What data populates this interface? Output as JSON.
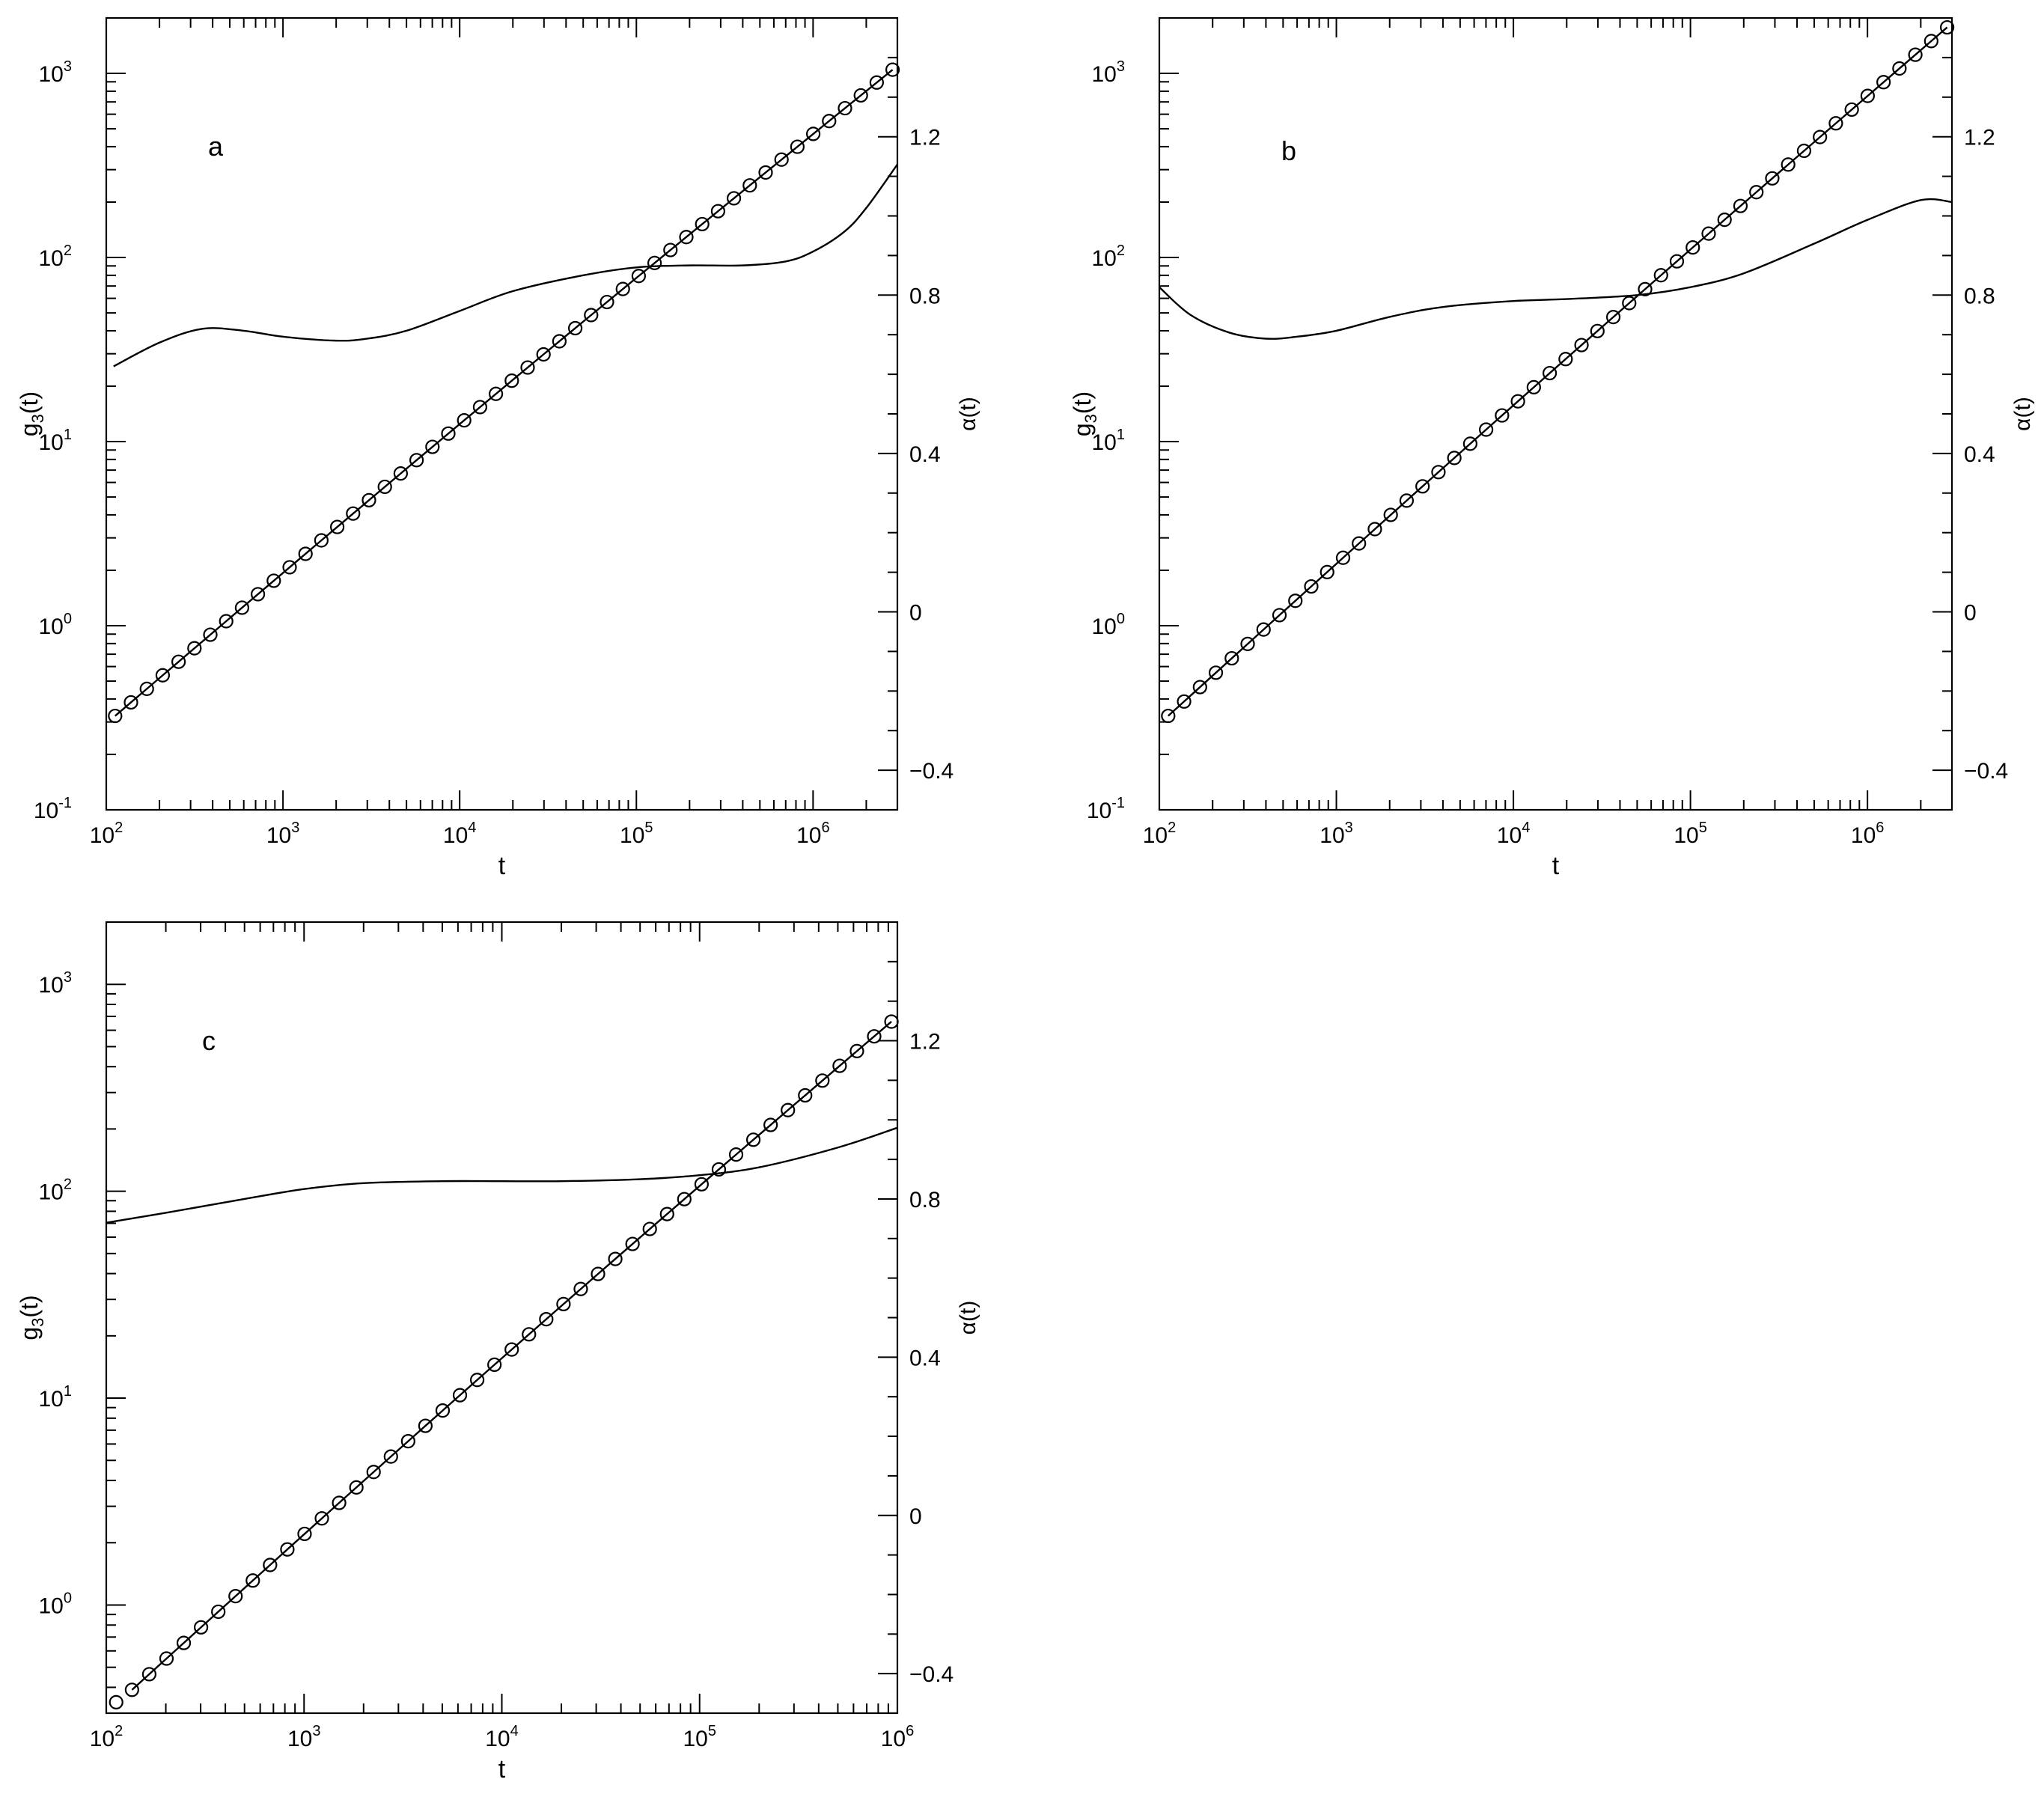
{
  "chart_data": [
    {
      "type": "line",
      "panel_label": "a",
      "xlabel": "t",
      "ylabel": "g3(t)",
      "ylabel_base": "g",
      "ylabel_sub": "3",
      "ylabel_suffix": "(t)",
      "y2label": "α(t)",
      "x_scale": "log",
      "y_scale": "log",
      "xlim": [
        100,
        3000000
      ],
      "ylim": [
        0.1,
        2000
      ],
      "y2lim": [
        -0.5,
        1.5
      ],
      "x_tick_exponents": [
        2,
        3,
        4,
        5,
        6
      ],
      "y_tick_exponents": [
        -1,
        0,
        1,
        2,
        3
      ],
      "y2_ticks": [
        "1.2",
        "0.8",
        "0.4",
        "0",
        "−0.4"
      ],
      "y2_tick_values": [
        1.2,
        0.8,
        0.4,
        0,
        -0.4
      ],
      "grid": false,
      "series": [
        {
          "role": "g3(t) markers with fit line",
          "y_axis": "left",
          "x_log_range": [
            2.05,
            6.45
          ],
          "y_log_range": [
            -0.49,
            3.02
          ],
          "n_markers": 50
        },
        {
          "role": "alpha(t)",
          "y_axis": "right",
          "x": [
            110,
            200,
            350,
            600,
            1000,
            2000,
            3000,
            5000,
            10000,
            20000,
            50000,
            100000,
            200000,
            400000,
            700000,
            1000000,
            1500000,
            2000000,
            3000000
          ],
          "y": [
            0.62,
            0.68,
            0.715,
            0.71,
            0.695,
            0.685,
            0.69,
            0.71,
            0.76,
            0.81,
            0.85,
            0.87,
            0.875,
            0.875,
            0.885,
            0.91,
            0.96,
            1.02,
            1.13
          ]
        }
      ]
    },
    {
      "type": "line",
      "panel_label": "b",
      "xlabel": "t",
      "ylabel": "g3(t)",
      "ylabel_base": "g",
      "ylabel_sub": "3",
      "ylabel_suffix": "(t)",
      "y2label": "α(t)",
      "x_scale": "log",
      "y_scale": "log",
      "xlim": [
        100,
        3000000
      ],
      "ylim": [
        0.1,
        2000
      ],
      "y2lim": [
        -0.5,
        1.5
      ],
      "x_tick_exponents": [
        2,
        3,
        4,
        5,
        6
      ],
      "y_tick_exponents": [
        -1,
        0,
        1,
        2,
        3
      ],
      "y2_ticks": [
        "1.2",
        "0.8",
        "0.4",
        "0",
        "−0.4"
      ],
      "y2_tick_values": [
        1.2,
        0.8,
        0.4,
        0,
        -0.4
      ],
      "grid": false,
      "series": [
        {
          "role": "g3(t) markers with fit line",
          "y_axis": "left",
          "x_log_range": [
            2.05,
            6.45
          ],
          "y_log_range": [
            -0.49,
            3.25
          ],
          "n_markers": 50
        },
        {
          "role": "alpha(t)",
          "y_axis": "right",
          "x": [
            100,
            150,
            250,
            400,
            600,
            1000,
            2000,
            4000,
            10000,
            20000,
            50000,
            100000,
            200000,
            500000,
            1000000,
            2000000,
            3000000
          ],
          "y": [
            0.82,
            0.75,
            0.705,
            0.69,
            0.695,
            0.71,
            0.745,
            0.77,
            0.785,
            0.79,
            0.8,
            0.82,
            0.855,
            0.93,
            0.99,
            1.04,
            1.035
          ]
        }
      ]
    },
    {
      "type": "line",
      "panel_label": "c",
      "xlabel": "t",
      "ylabel": "g3(t)",
      "ylabel_base": "g",
      "ylabel_sub": "3",
      "ylabel_suffix": "(t)",
      "y2label": "α(t)",
      "x_scale": "log",
      "y_scale": "log",
      "xlim": [
        100,
        1000000
      ],
      "ylim": [
        0.3,
        2000
      ],
      "y2lim": [
        -0.5,
        1.5
      ],
      "x_tick_exponents": [
        2,
        3,
        4,
        5,
        6
      ],
      "y_tick_exponents": [
        0,
        1,
        2,
        3
      ],
      "y2_ticks": [
        "1.2",
        "0.8",
        "0.4",
        "0",
        "−0.4"
      ],
      "y2_tick_values": [
        1.2,
        0.8,
        0.4,
        0,
        -0.4
      ],
      "grid": false,
      "series": [
        {
          "role": "g3(t) markers with fit line",
          "y_axis": "left",
          "x_log_range": [
            2.13,
            5.97
          ],
          "y_log_range": [
            -0.41,
            2.82
          ],
          "first_marker": [
            2.05,
            -0.47
          ],
          "n_markers": 45
        },
        {
          "role": "alpha(t)",
          "y_axis": "right",
          "x": [
            100,
            200,
            500,
            1000,
            2000,
            5000,
            10000,
            20000,
            50000,
            100000,
            200000,
            500000,
            1000000
          ],
          "y": [
            0.74,
            0.765,
            0.8,
            0.825,
            0.84,
            0.845,
            0.845,
            0.845,
            0.85,
            0.86,
            0.88,
            0.93,
            0.98
          ]
        }
      ]
    }
  ]
}
